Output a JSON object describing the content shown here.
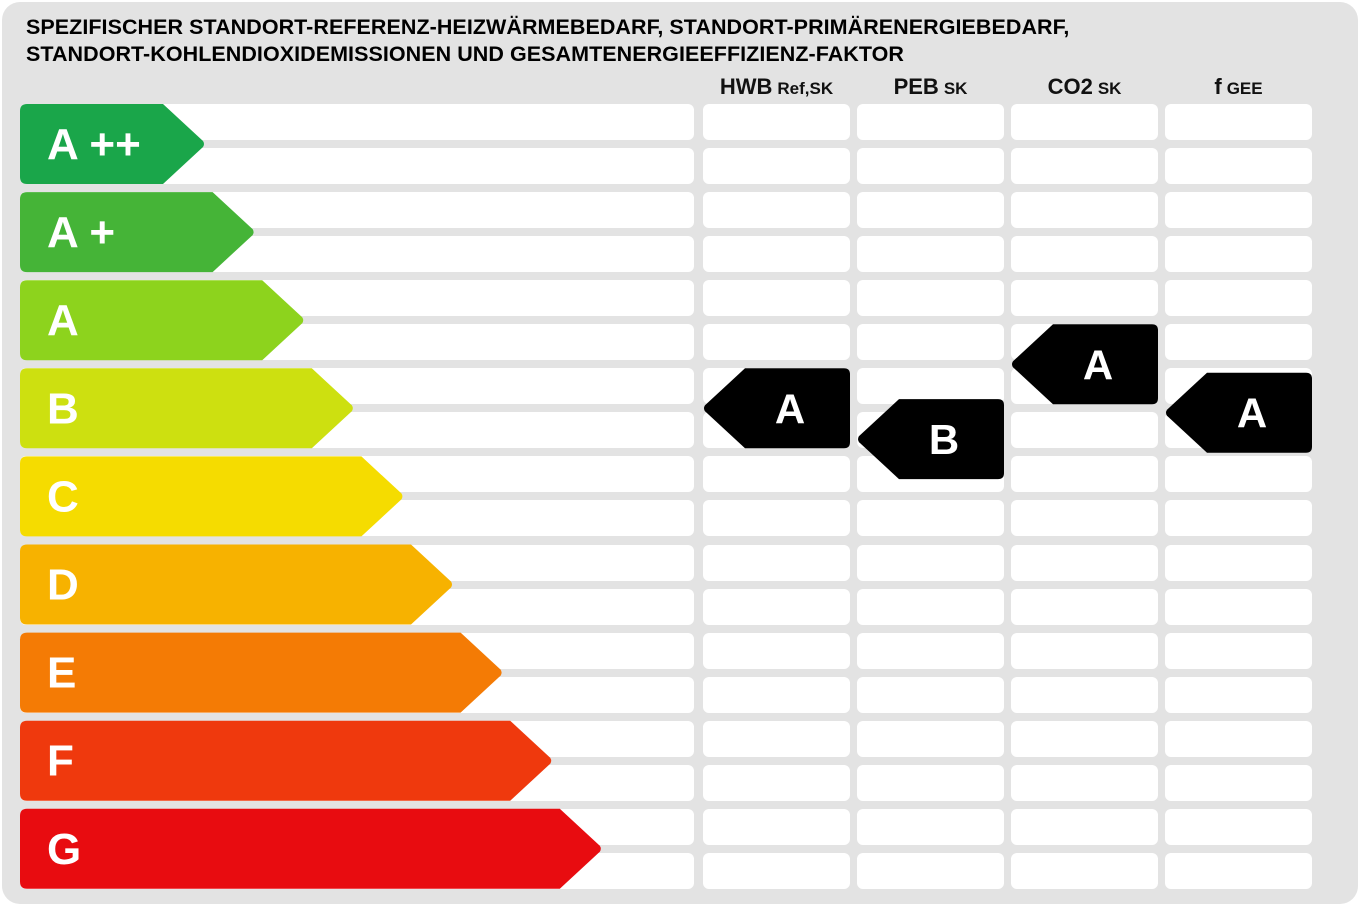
{
  "title_lines": [
    "SPEZIFISCHER STANDORT-REFERENZ-HEIZWÄRMEBEDARF, STANDORT-PRIMÄRENERGIEBEDARF,",
    "STANDORT-KOHLENDIOXIDEMISSIONEN UND GESAMTENERGIEEFFIZIENZ-FAKTOR"
  ],
  "columns": [
    {
      "main": "HWB",
      "sub": "Ref,SK"
    },
    {
      "main": "PEB",
      "sub": "SK"
    },
    {
      "main": "CO2",
      "sub": "SK"
    },
    {
      "main": "f",
      "sub": "GEE"
    }
  ],
  "chart_data": {
    "type": "table",
    "title": "SPEZIFISCHER STANDORT-REFERENZ-HEIZWÄRMEBEDARF, STANDORT-PRIMÄRENERGIEBEDARF, STANDORT-KOHLENDIOXIDEMISSIONEN UND GESAMTENERGIEEFFIZIENZ-FAKTOR",
    "classes": [
      {
        "label": "A ++",
        "color": "#1aa64a"
      },
      {
        "label": "A +",
        "color": "#45b437"
      },
      {
        "label": "A",
        "color": "#8dd31d"
      },
      {
        "label": "B",
        "color": "#cde010"
      },
      {
        "label": "C",
        "color": "#f5dc00"
      },
      {
        "label": "D",
        "color": "#f7b200"
      },
      {
        "label": "E",
        "color": "#f47b05"
      },
      {
        "label": "F",
        "color": "#ef390d"
      },
      {
        "label": "G",
        "color": "#e80c10"
      }
    ],
    "ratings": [
      {
        "column": "HWB Ref,SK",
        "label": "A",
        "level": 3.0
      },
      {
        "column": "PEB SK",
        "label": "B",
        "level": 3.35
      },
      {
        "column": "CO2 SK",
        "label": "A",
        "level": 2.5
      },
      {
        "column": "f GEE",
        "label": "A",
        "level": 3.05
      }
    ],
    "marker_color": "#000000"
  }
}
